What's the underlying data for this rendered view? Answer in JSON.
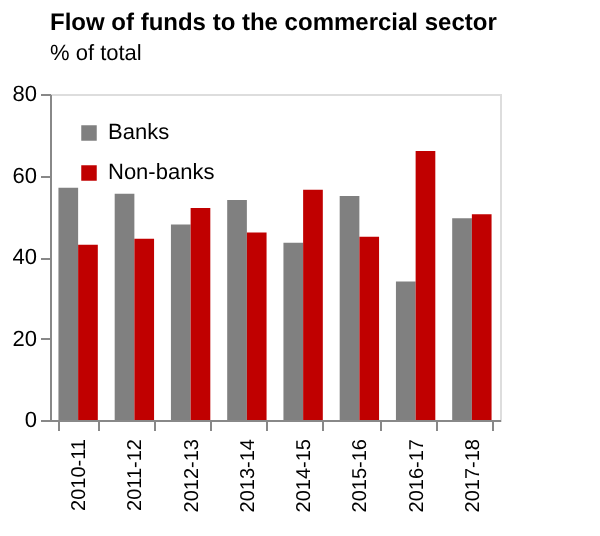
{
  "chart_data": {
    "type": "bar",
    "title": "Flow of funds to the commercial sector",
    "subtitle": "% of total",
    "categories": [
      "2010-11",
      "2011-12",
      "2012-13",
      "2013-14",
      "2014-15",
      "2015-16",
      "2016-17",
      "2017-18"
    ],
    "series": [
      {
        "name": "Banks",
        "color": "#808080",
        "values": [
          57,
          55.5,
          48,
          54,
          43.5,
          55,
          34,
          49.5
        ]
      },
      {
        "name": "Non-banks",
        "color": "#c00000",
        "values": [
          43,
          44.5,
          52,
          46,
          56.5,
          45,
          66,
          50.5
        ]
      }
    ],
    "ylim": [
      0,
      80
    ],
    "yticks": [
      0,
      20,
      40,
      60,
      80
    ],
    "grid": false,
    "legend": "top left"
  }
}
